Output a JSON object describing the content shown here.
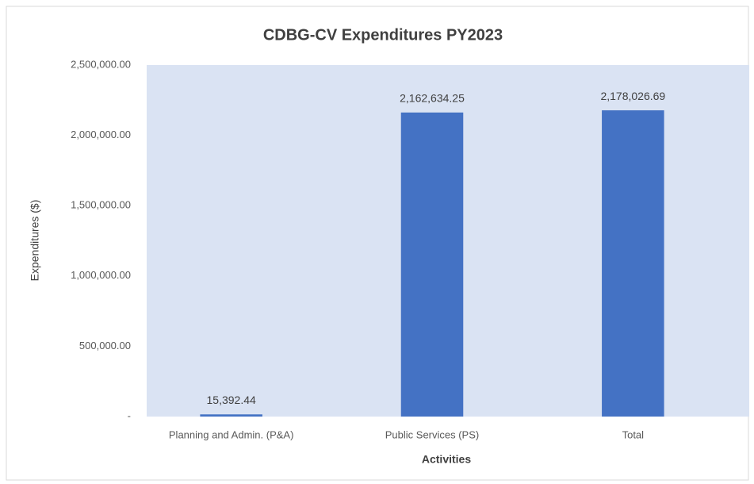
{
  "chart_data": {
    "type": "bar",
    "title": "CDBG-CV Expenditures PY2023",
    "x_label": "Activities",
    "y_label": "Expenditures ($)",
    "categories": [
      "Planning and Admin. (P&A)",
      "Public Services (PS)",
      "Total"
    ],
    "values": [
      15392.44,
      2162634.25,
      2178026.69
    ],
    "value_labels": [
      "15,392.44",
      "2,162,634.25",
      "2,178,026.69"
    ],
    "color": "#4472c4",
    "ylim": [
      0,
      2500000
    ],
    "yticks": [
      {
        "value": 0,
        "label": "-"
      },
      {
        "value": 500000,
        "label": "500,000.00"
      },
      {
        "value": 1000000,
        "label": "1,000,000.00"
      },
      {
        "value": 1500000,
        "label": "1,500,000.00"
      },
      {
        "value": 2000000,
        "label": "2,000,000.00"
      },
      {
        "value": 2500000,
        "label": "2,500,000.00"
      }
    ],
    "grid": false
  }
}
